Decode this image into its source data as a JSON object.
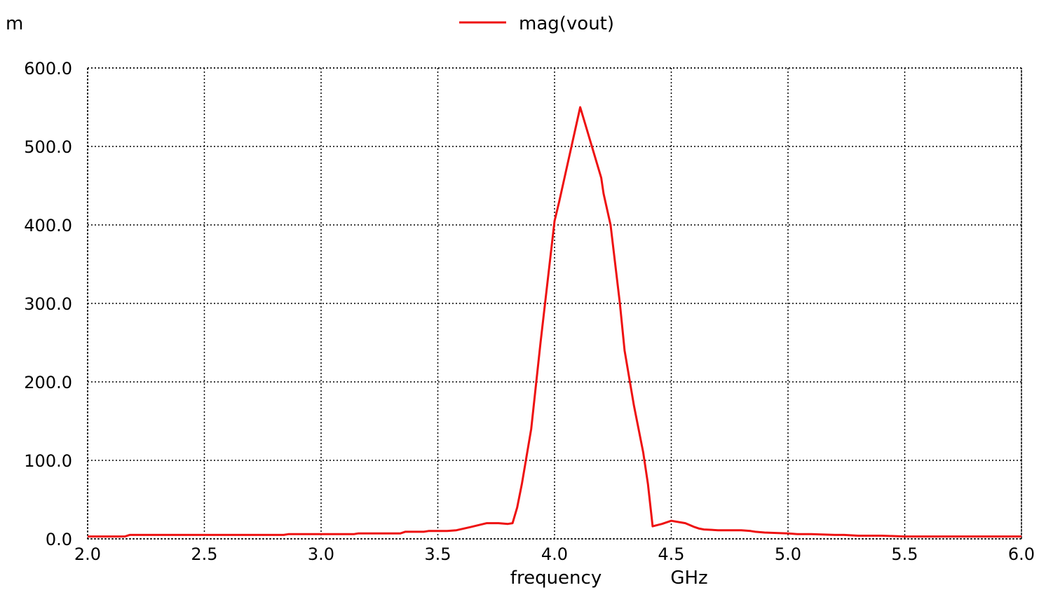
{
  "chart_data": {
    "type": "line",
    "y_unit_prefix": "m",
    "xlabel": "frequency",
    "xunit": "GHz",
    "xlim": [
      2.0,
      6.0
    ],
    "ylim": [
      0,
      600
    ],
    "grid": true,
    "grid_style": "dotted",
    "legend_position": "top-center",
    "x_ticks": [
      2.0,
      2.5,
      3.0,
      3.5,
      4.0,
      4.5,
      5.0,
      5.5,
      6.0
    ],
    "x_tick_labels": [
      "2.0",
      "2.5",
      "3.0",
      "3.5",
      "4.0",
      "4.5",
      "5.0",
      "5.5",
      "6.0"
    ],
    "y_ticks": [
      0,
      100,
      200,
      300,
      400,
      500,
      600
    ],
    "y_tick_labels": [
      "0.0",
      "100.0",
      "200.0",
      "300.0",
      "400.0",
      "500.0",
      "600.0"
    ],
    "series": [
      {
        "name": "mag(vout)",
        "color": "#ee1111",
        "x": [
          2.0,
          2.16,
          2.18,
          2.5,
          2.84,
          2.86,
          3.0,
          3.14,
          3.16,
          3.34,
          3.36,
          3.44,
          3.46,
          3.54,
          3.58,
          3.64,
          3.71,
          3.74,
          3.76,
          3.8,
          3.82,
          3.84,
          3.86,
          3.9,
          3.94,
          4.0,
          4.02,
          4.11,
          4.13,
          4.2,
          4.21,
          4.24,
          4.28,
          4.3,
          4.34,
          4.38,
          4.4,
          4.42,
          4.46,
          4.5,
          4.52,
          4.56,
          4.6,
          4.62,
          4.64,
          4.7,
          4.8,
          4.84,
          4.86,
          4.9,
          5.0,
          5.04,
          5.1,
          5.2,
          5.24,
          5.3,
          5.4,
          5.5,
          5.54,
          5.6,
          6.0
        ],
        "y": [
          3,
          3,
          5,
          5,
          5,
          6,
          6,
          6,
          7,
          7,
          9,
          9,
          10,
          10,
          11,
          15,
          20,
          20,
          20,
          19,
          20,
          40,
          70,
          140,
          250,
          405,
          430,
          550,
          530,
          460,
          440,
          400,
          300,
          240,
          170,
          110,
          70,
          16,
          19,
          23,
          22,
          20,
          15,
          13,
          12,
          11,
          11,
          10,
          9,
          8,
          7,
          6,
          6,
          5,
          5,
          4,
          4,
          3,
          3,
          3,
          3
        ]
      }
    ]
  }
}
